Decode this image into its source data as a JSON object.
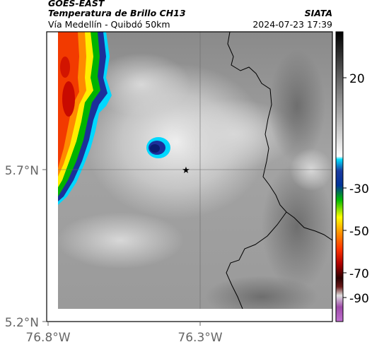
{
  "header": {
    "satellite": "GOES-EAST",
    "product": "Temperatura de Brillo CH13",
    "source": "SIATA",
    "location": "Vía Medellín - Quibdó 50km",
    "datetime": "2024-07-23 17:39"
  },
  "map": {
    "lat_ticks": [
      "5.7°N",
      "5.2°N"
    ],
    "lon_ticks": [
      "76.8°W",
      "76.3°W"
    ],
    "marker": "star"
  },
  "colorbar": {
    "ticks": [
      "20",
      "-30",
      "-50",
      "-70",
      "-90"
    ]
  }
}
